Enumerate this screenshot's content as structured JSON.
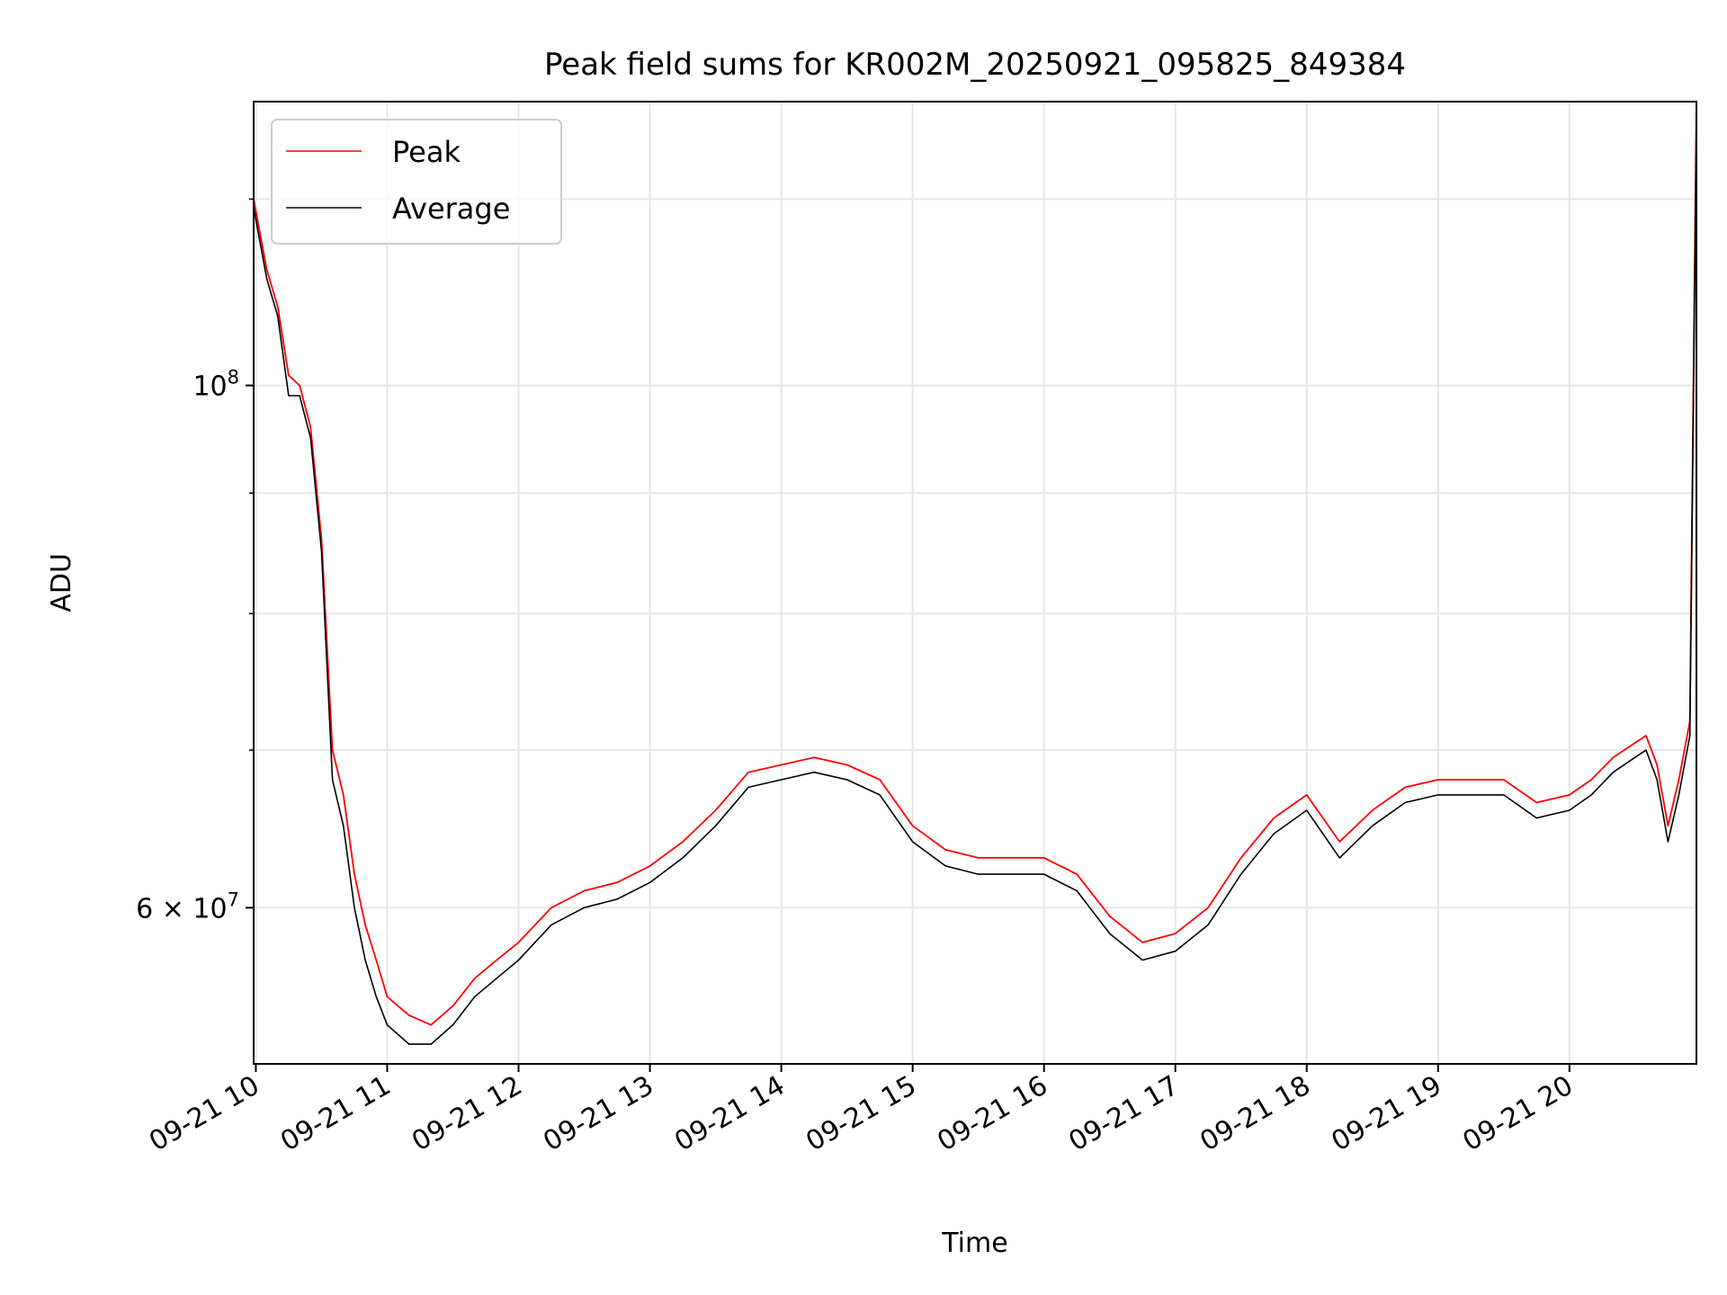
{
  "chart_data": {
    "type": "line",
    "title": "Peak field sums for KR002M_20250921_095825_849384",
    "xlabel": "Time",
    "ylabel": "ADU",
    "yscale": "log",
    "ylim": [
      51500000,
      132000000
    ],
    "xlim": [
      "2025-09-21 09:59",
      "2025-09-21 20:58"
    ],
    "grid": true,
    "legend": "upper-left",
    "x_ticks": [
      {
        "t": "2025-09-21 10:00",
        "label": "09-21 10"
      },
      {
        "t": "2025-09-21 11:00",
        "label": "09-21 11"
      },
      {
        "t": "2025-09-21 12:00",
        "label": "09-21 12"
      },
      {
        "t": "2025-09-21 13:00",
        "label": "09-21 13"
      },
      {
        "t": "2025-09-21 14:00",
        "label": "09-21 14"
      },
      {
        "t": "2025-09-21 15:00",
        "label": "09-21 15"
      },
      {
        "t": "2025-09-21 16:00",
        "label": "09-21 16"
      },
      {
        "t": "2025-09-21 17:00",
        "label": "09-21 17"
      },
      {
        "t": "2025-09-21 18:00",
        "label": "09-21 18"
      },
      {
        "t": "2025-09-21 19:00",
        "label": "09-21 19"
      },
      {
        "t": "2025-09-21 20:00",
        "label": "09-21 20"
      }
    ],
    "y_ticks_major": [
      {
        "value": 100000000,
        "base": "10",
        "exp": "8",
        "prefix": ""
      },
      {
        "value": 60000000,
        "base": "10",
        "exp": "7",
        "prefix": "6 × "
      }
    ],
    "y_ticks_minor": [
      70000000,
      80000000,
      90000000,
      120000000
    ],
    "series": [
      {
        "name": "Peak",
        "color": "#ff0000",
        "x": [
          "2025-09-21 09:59",
          "2025-09-21 10:05",
          "2025-09-21 10:10",
          "2025-09-21 10:15",
          "2025-09-21 10:20",
          "2025-09-21 10:25",
          "2025-09-21 10:30",
          "2025-09-21 10:35",
          "2025-09-21 10:40",
          "2025-09-21 10:45",
          "2025-09-21 10:50",
          "2025-09-21 10:55",
          "2025-09-21 11:00",
          "2025-09-21 11:10",
          "2025-09-21 11:20",
          "2025-09-21 11:30",
          "2025-09-21 11:40",
          "2025-09-21 11:50",
          "2025-09-21 12:00",
          "2025-09-21 12:15",
          "2025-09-21 12:30",
          "2025-09-21 12:45",
          "2025-09-21 13:00",
          "2025-09-21 13:15",
          "2025-09-21 13:30",
          "2025-09-21 13:45",
          "2025-09-21 14:00",
          "2025-09-21 14:15",
          "2025-09-21 14:30",
          "2025-09-21 14:45",
          "2025-09-21 15:00",
          "2025-09-21 15:15",
          "2025-09-21 15:30",
          "2025-09-21 15:45",
          "2025-09-21 16:00",
          "2025-09-21 16:15",
          "2025-09-21 16:30",
          "2025-09-21 16:45",
          "2025-09-21 17:00",
          "2025-09-21 17:15",
          "2025-09-21 17:30",
          "2025-09-21 17:45",
          "2025-09-21 18:00",
          "2025-09-21 18:15",
          "2025-09-21 18:30",
          "2025-09-21 18:45",
          "2025-09-21 19:00",
          "2025-09-21 19:15",
          "2025-09-21 19:30",
          "2025-09-21 19:45",
          "2025-09-21 20:00",
          "2025-09-21 20:10",
          "2025-09-21 20:20",
          "2025-09-21 20:30",
          "2025-09-21 20:35",
          "2025-09-21 20:40",
          "2025-09-21 20:45",
          "2025-09-21 20:50",
          "2025-09-21 20:55",
          "2025-09-21 20:58"
        ],
        "values": [
          120000000,
          112000000,
          108000000,
          101000000,
          100000000,
          96000000,
          86000000,
          70000000,
          67000000,
          62000000,
          59000000,
          57000000,
          55000000,
          54000000,
          53500000,
          54500000,
          56000000,
          57000000,
          58000000,
          60000000,
          61000000,
          61500000,
          62500000,
          64000000,
          66000000,
          68500000,
          69000000,
          69500000,
          69000000,
          68000000,
          65000000,
          63500000,
          63000000,
          63000000,
          63000000,
          62000000,
          59500000,
          58000000,
          58500000,
          60000000,
          63000000,
          65500000,
          67000000,
          64000000,
          66000000,
          67500000,
          68000000,
          68000000,
          68000000,
          66500000,
          67000000,
          68000000,
          69500000,
          70500000,
          71000000,
          69000000,
          65000000,
          68000000,
          72000000,
          132000000
        ]
      },
      {
        "name": "Average",
        "color": "#000000",
        "x": [
          "2025-09-21 09:59",
          "2025-09-21 10:05",
          "2025-09-21 10:10",
          "2025-09-21 10:15",
          "2025-09-21 10:20",
          "2025-09-21 10:25",
          "2025-09-21 10:30",
          "2025-09-21 10:35",
          "2025-09-21 10:40",
          "2025-09-21 10:45",
          "2025-09-21 10:50",
          "2025-09-21 10:55",
          "2025-09-21 11:00",
          "2025-09-21 11:10",
          "2025-09-21 11:20",
          "2025-09-21 11:30",
          "2025-09-21 11:40",
          "2025-09-21 11:50",
          "2025-09-21 12:00",
          "2025-09-21 12:15",
          "2025-09-21 12:30",
          "2025-09-21 12:45",
          "2025-09-21 13:00",
          "2025-09-21 13:15",
          "2025-09-21 13:30",
          "2025-09-21 13:45",
          "2025-09-21 14:00",
          "2025-09-21 14:15",
          "2025-09-21 14:30",
          "2025-09-21 14:45",
          "2025-09-21 15:00",
          "2025-09-21 15:15",
          "2025-09-21 15:30",
          "2025-09-21 15:45",
          "2025-09-21 16:00",
          "2025-09-21 16:15",
          "2025-09-21 16:30",
          "2025-09-21 16:45",
          "2025-09-21 17:00",
          "2025-09-21 17:15",
          "2025-09-21 17:30",
          "2025-09-21 17:45",
          "2025-09-21 18:00",
          "2025-09-21 18:15",
          "2025-09-21 18:30",
          "2025-09-21 18:45",
          "2025-09-21 19:00",
          "2025-09-21 19:15",
          "2025-09-21 19:30",
          "2025-09-21 19:45",
          "2025-09-21 20:00",
          "2025-09-21 20:10",
          "2025-09-21 20:20",
          "2025-09-21 20:30",
          "2025-09-21 20:35",
          "2025-09-21 20:40",
          "2025-09-21 20:45",
          "2025-09-21 20:50",
          "2025-09-21 20:55",
          "2025-09-21 20:58"
        ],
        "values": [
          119000000,
          111000000,
          107000000,
          99000000,
          99000000,
          95000000,
          85000000,
          68000000,
          65000000,
          60000000,
          57000000,
          55000000,
          53500000,
          52500000,
          52500000,
          53500000,
          55000000,
          56000000,
          57000000,
          59000000,
          60000000,
          60500000,
          61500000,
          63000000,
          65000000,
          67500000,
          68000000,
          68500000,
          68000000,
          67000000,
          64000000,
          62500000,
          62000000,
          62000000,
          62000000,
          61000000,
          58500000,
          57000000,
          57500000,
          59000000,
          62000000,
          64500000,
          66000000,
          63000000,
          65000000,
          66500000,
          67000000,
          67000000,
          67000000,
          65500000,
          66000000,
          67000000,
          68500000,
          69500000,
          70000000,
          68000000,
          64000000,
          67000000,
          71000000,
          130000000
        ]
      }
    ]
  }
}
